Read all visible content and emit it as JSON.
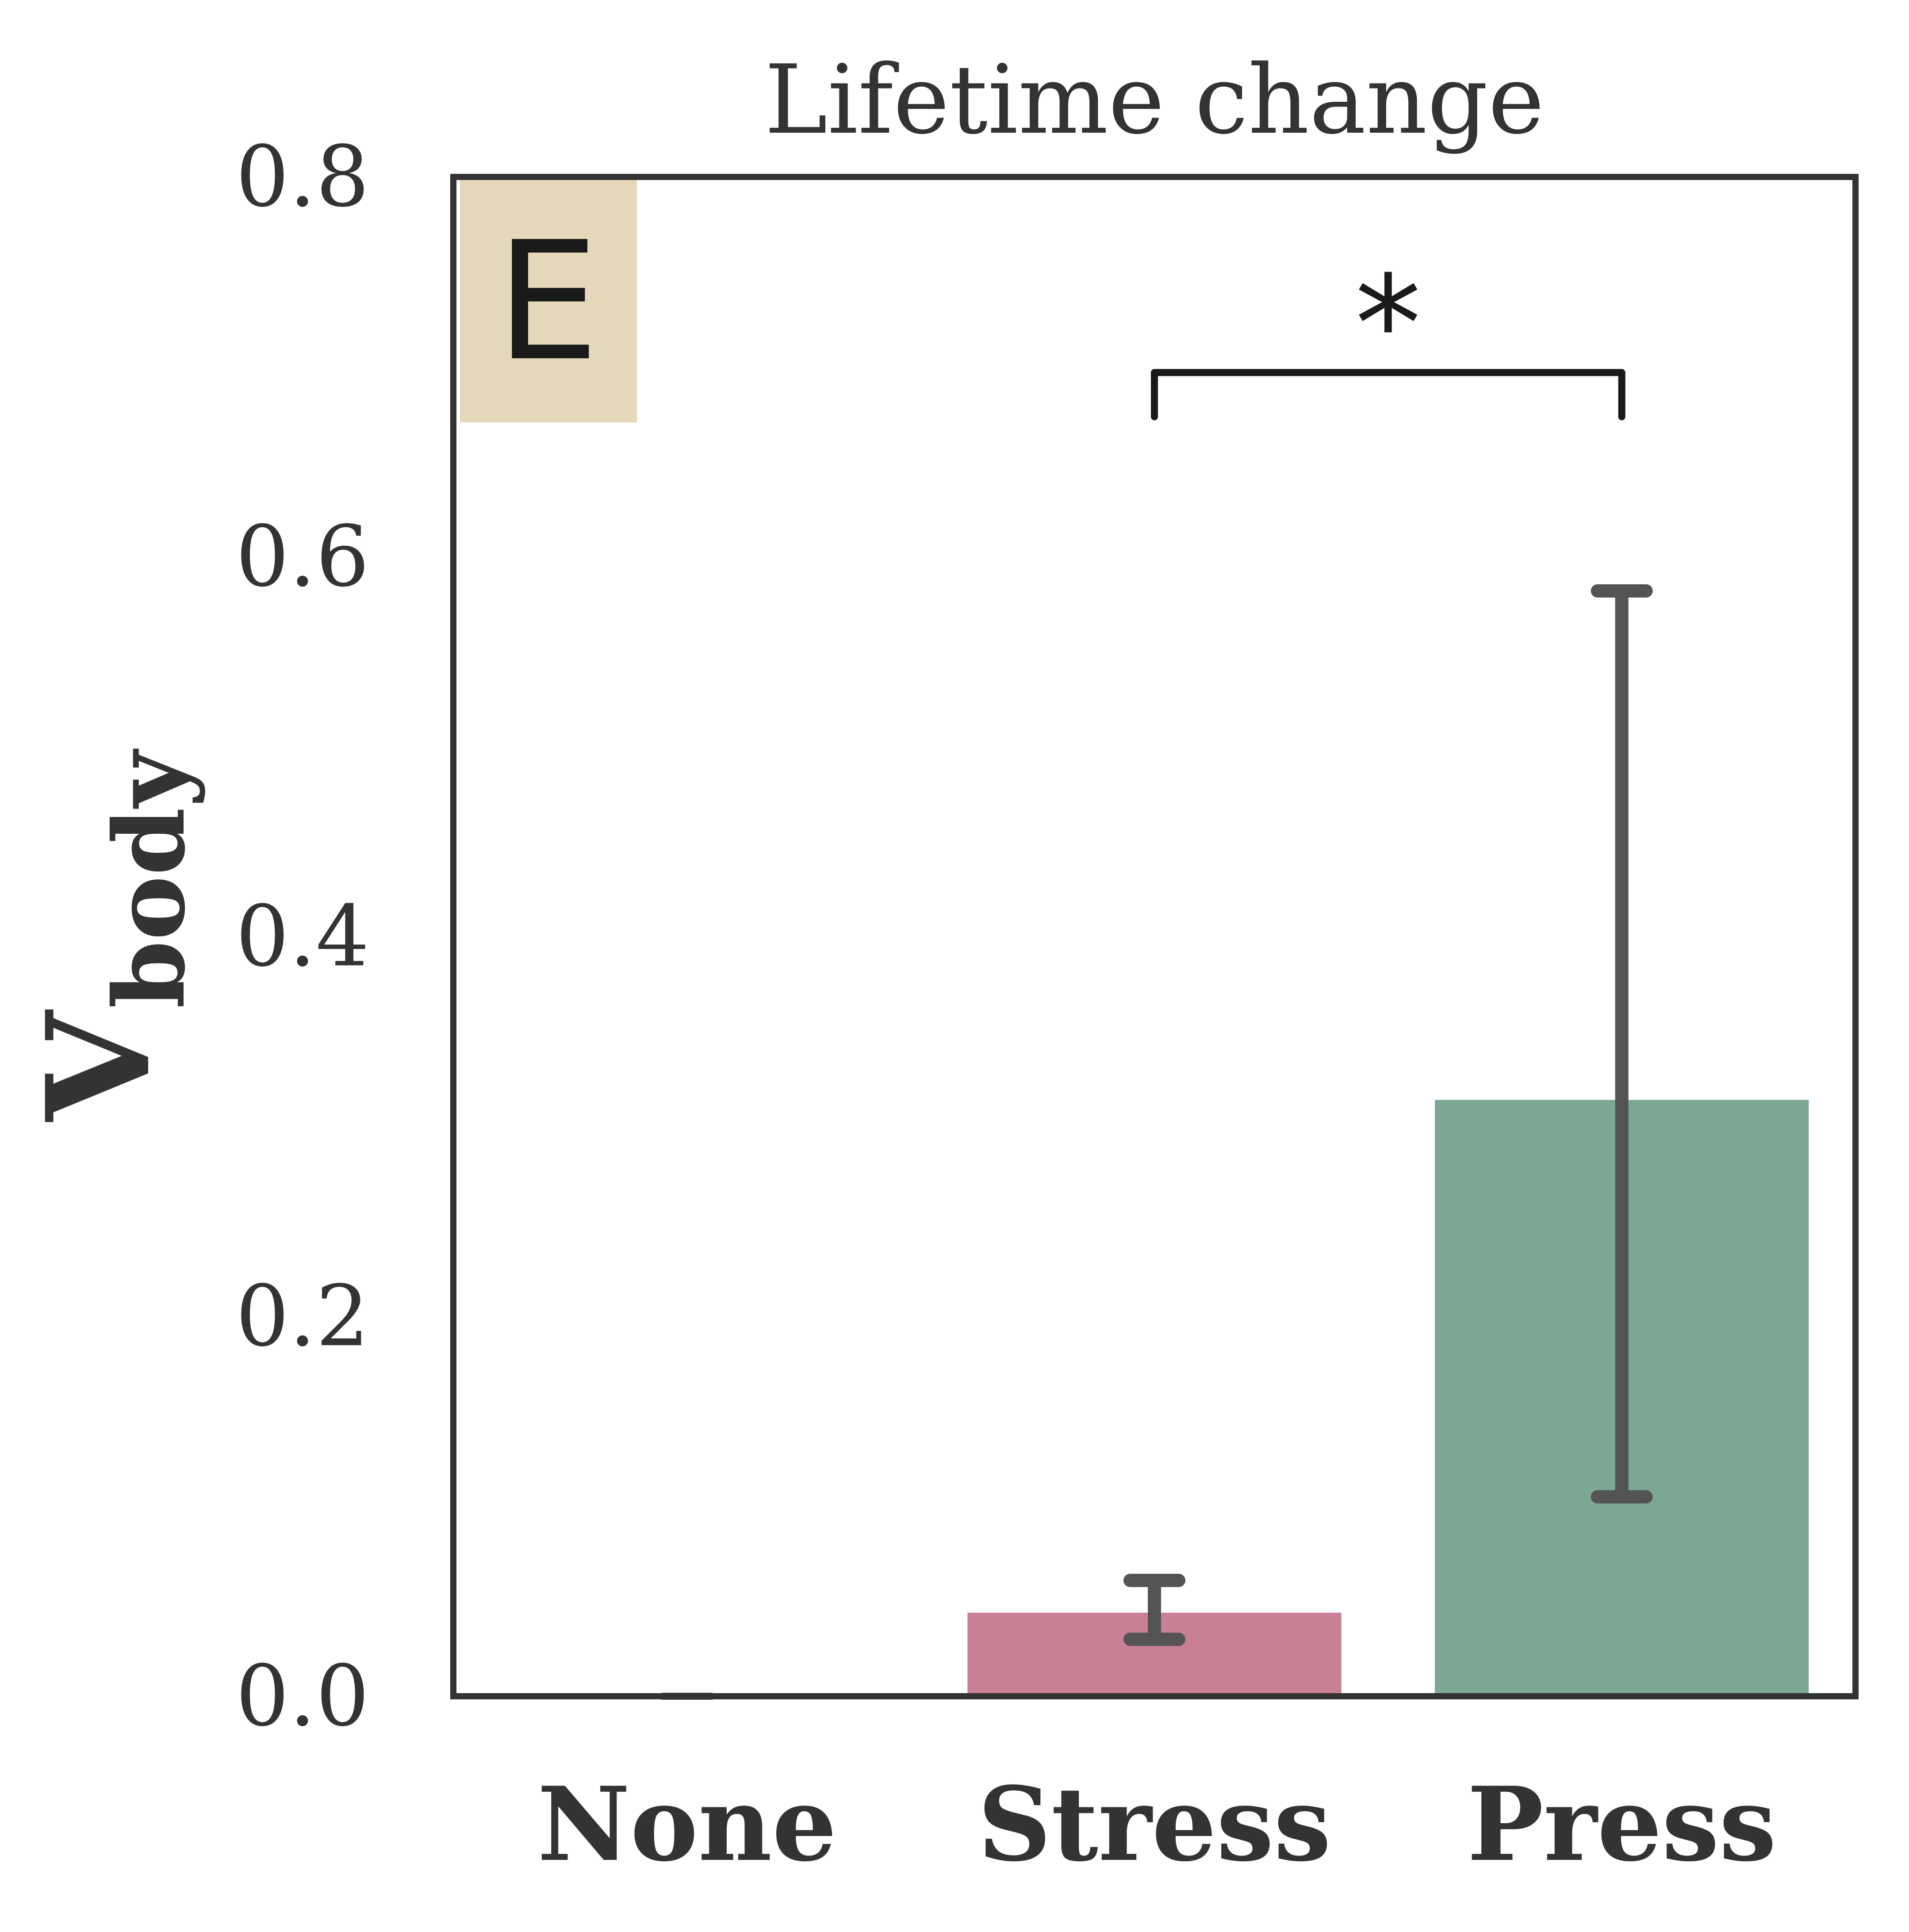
{
  "chart_data": {
    "type": "bar",
    "title": "Lifetime change",
    "categories": [
      "None",
      "Stress",
      "Press"
    ],
    "values": [
      0.0,
      0.044,
      0.314
    ],
    "error_low": [
      0.0,
      0.03,
      0.105
    ],
    "error_high": [
      0.0,
      0.061,
      0.582
    ],
    "colors": [
      "#9aa0a6",
      "#c97f94",
      "#7ba793"
    ],
    "error_color": "#545454",
    "ylabel_main": "V",
    "ylabel_sub": "body",
    "xlabel": "",
    "ylim": [
      0,
      0.8
    ],
    "yticks": [
      0.0,
      0.2,
      0.4,
      0.6,
      0.8
    ],
    "ytick_labels": [
      "0.0",
      "0.2",
      "0.4",
      "0.6",
      "0.8"
    ],
    "panel_label": "E",
    "panel_label_bg": "#e5d8b8",
    "significance": {
      "from": "Stress",
      "to": "Press",
      "label": "*",
      "level": 0.697,
      "drop": 0.697
    },
    "grid": false
  }
}
